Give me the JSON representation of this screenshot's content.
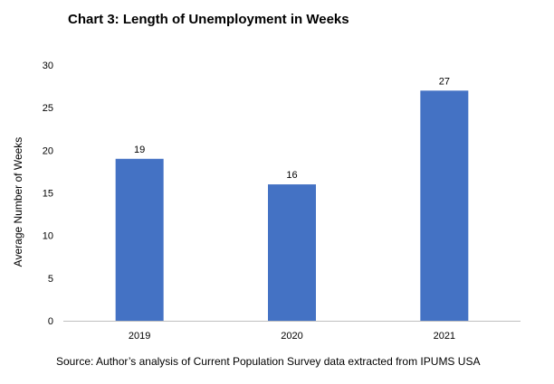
{
  "chart_data": {
    "type": "bar",
    "title": "Chart 3: Length of Unemployment in Weeks",
    "categories": [
      "2019",
      "2020",
      "2021"
    ],
    "values": [
      19,
      16,
      27
    ],
    "data_labels": [
      "19",
      "16",
      "27"
    ],
    "xlabel": "",
    "ylabel": "Average Number of Weeks",
    "ylim": [
      0,
      30
    ],
    "yticks": [
      "0",
      "5",
      "10",
      "15",
      "20",
      "25",
      "30"
    ],
    "grid": false,
    "legend": "none",
    "bar_color": "#4472C4",
    "source": "Source: Author’s analysis of Current Population Survey data extracted from IPUMS USA"
  }
}
